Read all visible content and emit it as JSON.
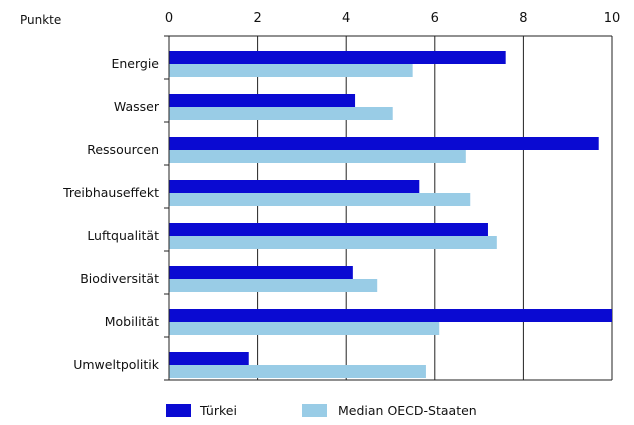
{
  "chart_data": {
    "type": "bar",
    "orientation": "horizontal",
    "unit_label": "Punkte",
    "categories": [
      "Energie",
      "Wasser",
      "Ressourcen",
      "Treibhauseffekt",
      "Luftqualität",
      "Biodiversität",
      "Mobilität",
      "Umweltpolitik"
    ],
    "series": [
      {
        "name": "Türkei",
        "color": "#0a0ad2",
        "values": [
          7.6,
          4.2,
          9.7,
          5.65,
          7.2,
          4.15,
          10.0,
          1.8
        ]
      },
      {
        "name": "Median OECD-Staaten",
        "color": "#99cce6",
        "values": [
          5.5,
          5.05,
          6.7,
          6.8,
          7.4,
          4.7,
          6.1,
          5.8
        ]
      }
    ],
    "xlim": [
      0,
      10
    ],
    "xticks": [
      0,
      2,
      4,
      6,
      8,
      10
    ],
    "tick_labels": [
      "0",
      "2",
      "4",
      "6",
      "8",
      "10"
    ],
    "grid": "vertical",
    "axis_position": "top",
    "legend_position": "bottom"
  }
}
